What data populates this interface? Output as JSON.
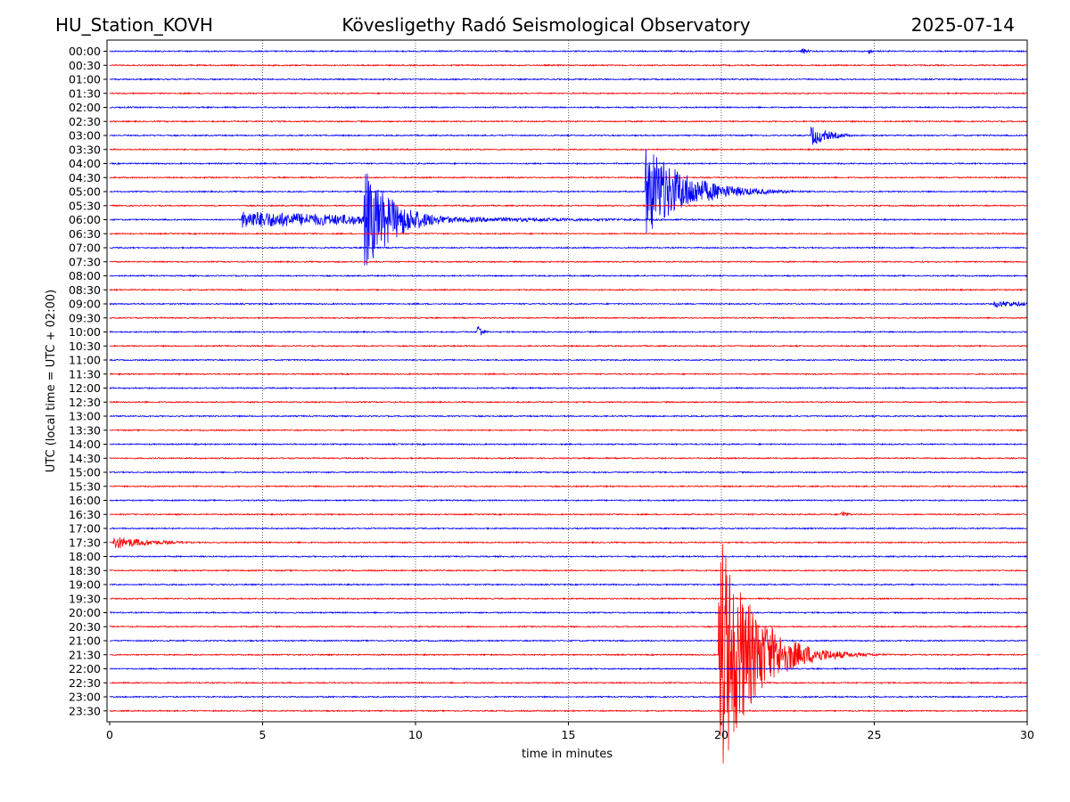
{
  "header": {
    "station": "HU_Station_KOVH",
    "title": "Kövesligethy Radó Seismological Observatory",
    "date": "2025-07-14"
  },
  "chart_data": {
    "type": "line",
    "title": "Kövesligethy Radó Seismological Observatory",
    "xlabel": "time in minutes",
    "ylabel": "UTC (local time = UTC + 02:00)",
    "xlim": [
      0,
      30
    ],
    "x_ticks": [
      "0",
      "5",
      "10",
      "15",
      "20",
      "25",
      "30"
    ],
    "grid": "vertical dotted",
    "series_colors": {
      "even_rows": "#0000ff",
      "odd_rows": "#ff0000"
    },
    "rows": [
      "00:00",
      "00:30",
      "01:00",
      "01:30",
      "02:00",
      "02:30",
      "03:00",
      "03:30",
      "04:00",
      "04:30",
      "05:00",
      "05:30",
      "06:00",
      "06:30",
      "07:00",
      "07:30",
      "08:00",
      "08:30",
      "09:00",
      "09:30",
      "10:00",
      "10:30",
      "11:00",
      "11:30",
      "12:00",
      "12:30",
      "13:00",
      "13:30",
      "14:00",
      "14:30",
      "15:00",
      "15:30",
      "16:00",
      "16:30",
      "17:00",
      "17:30",
      "18:00",
      "18:30",
      "19:00",
      "19:30",
      "20:00",
      "20:30",
      "21:00",
      "21:30",
      "22:00",
      "22:30",
      "23:00",
      "23:30"
    ],
    "events": [
      {
        "row": 0,
        "start": 22.6,
        "end": 23.0,
        "amplitude": 5,
        "decay": 0.2
      },
      {
        "row": 0,
        "start": 24.8,
        "end": 24.95,
        "amplitude": 5,
        "decay": 0.1
      },
      {
        "row": 6,
        "start": 22.9,
        "end": 24.3,
        "amplitude": 13,
        "decay": 0.6
      },
      {
        "row": 10,
        "start": 17.5,
        "end": 25.5,
        "amplitude": 55,
        "decay": 1.3
      },
      {
        "row": 12,
        "start": 4.3,
        "end": 19.5,
        "amplitude": 10,
        "decay": 6.0
      },
      {
        "row": 12,
        "start": 8.3,
        "end": 11.5,
        "amplitude": 60,
        "decay": 1.0
      },
      {
        "row": 18,
        "start": 28.9,
        "end": 30.0,
        "amplitude": 4,
        "decay": 1.5
      },
      {
        "row": 20,
        "start": 12.0,
        "end": 12.4,
        "amplitude": 13,
        "decay": 0.15
      },
      {
        "row": 33,
        "start": 23.9,
        "end": 24.3,
        "amplitude": 6,
        "decay": 0.2
      },
      {
        "row": 35,
        "start": 0.1,
        "end": 6.0,
        "amplitude": 8,
        "decay": 1.2
      },
      {
        "row": 43,
        "start": 19.9,
        "end": 27.5,
        "amplitude": 150,
        "decay": 1.1
      }
    ]
  }
}
